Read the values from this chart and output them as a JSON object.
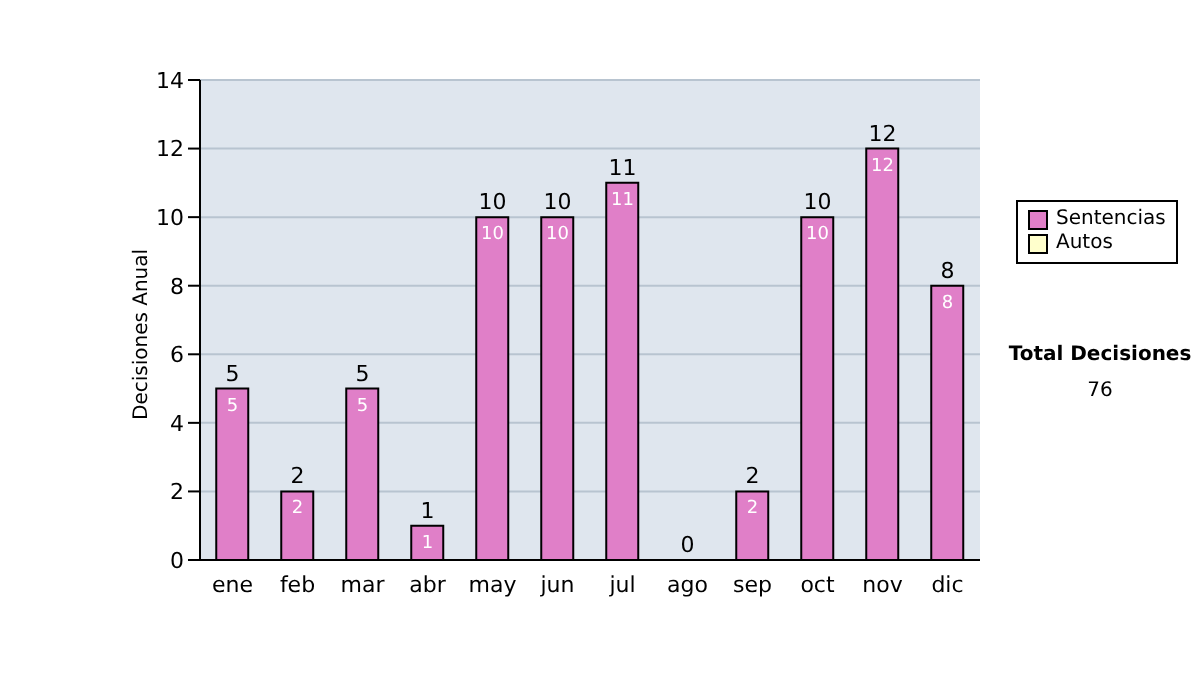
{
  "chart_data": {
    "type": "bar",
    "ylabel": "Decisiones Anual",
    "categories": [
      "ene",
      "feb",
      "mar",
      "abr",
      "may",
      "jun",
      "jul",
      "ago",
      "sep",
      "oct",
      "nov",
      "dic"
    ],
    "series": [
      {
        "name": "Sentencias",
        "color": "#e07fc8",
        "values": [
          5,
          2,
          5,
          1,
          10,
          10,
          11,
          0,
          2,
          10,
          12,
          8
        ],
        "value_labels": [
          "5",
          "2",
          "5",
          "1",
          "10",
          "10",
          "11",
          null,
          "2",
          "10",
          "12",
          "8"
        ]
      },
      {
        "name": "Autos",
        "color": "#ffffcc",
        "values": [
          0,
          0,
          0,
          0,
          0,
          0,
          0,
          0,
          0,
          0,
          0,
          0
        ]
      }
    ],
    "stacked": true,
    "totals": [
      "5",
      "2",
      "5",
      "1",
      "10",
      "10",
      "11",
      "0",
      "2",
      "10",
      "12",
      "8"
    ],
    "ylim": [
      0,
      14
    ],
    "yticks": [
      0,
      2,
      4,
      6,
      8,
      10,
      12,
      14
    ],
    "grid": "y",
    "legend": "right",
    "annotations": [
      "Total Decisiones",
      "76"
    ]
  }
}
